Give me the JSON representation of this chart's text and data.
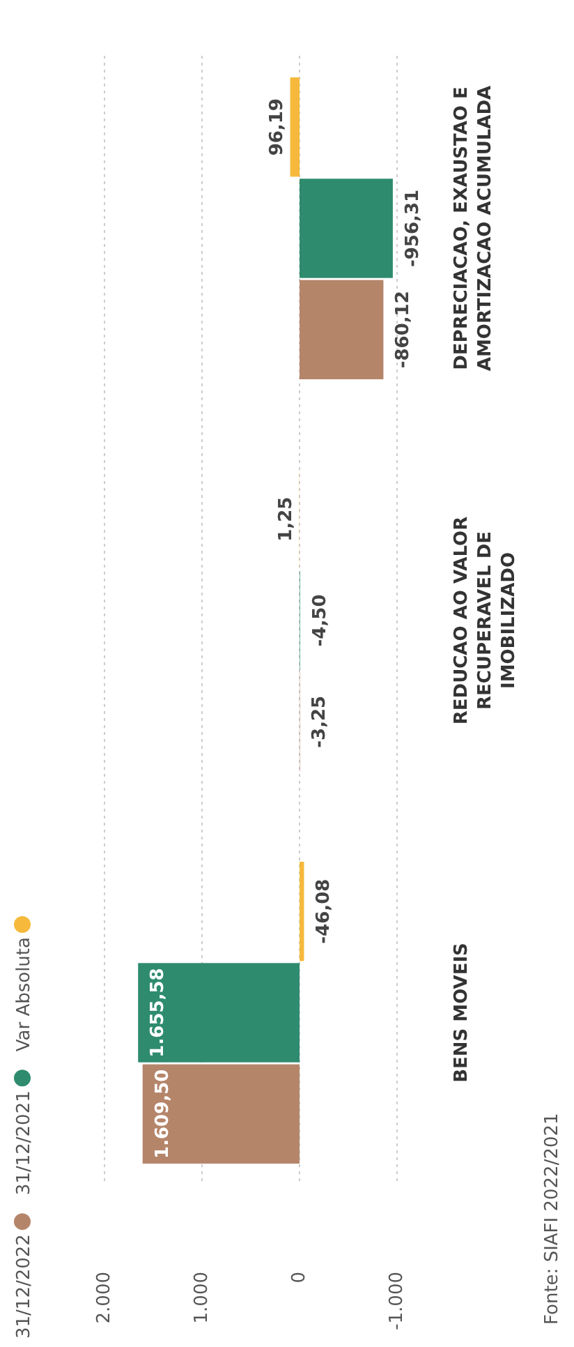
{
  "chart_data": {
    "type": "bar",
    "orientation": "horizontal",
    "categories": [
      "DEPRECIACAO, EXAUSTAO E AMORTIZACAO ACUMULADA",
      "REDUCAO AO VALOR RECUPERAVEL DE IMOBILIZADO",
      "BENS MOVEIS"
    ],
    "series": [
      {
        "name": "31/12/2022",
        "color": "#b5856a",
        "values": [
          -860.12,
          -3.25,
          1609.5
        ],
        "value_labels": [
          "-860,12",
          "-3,25",
          "1.609,50"
        ]
      },
      {
        "name": "31/12/2021",
        "color": "#2e8b6e",
        "values": [
          -956.31,
          -4.5,
          1655.58
        ],
        "value_labels": [
          "-956,31",
          "-4,50",
          "1.655,58"
        ]
      },
      {
        "name": "Var Absoluta",
        "color": "#f6b93b",
        "values": [
          96.19,
          1.25,
          -46.08
        ],
        "value_labels": [
          "96,19",
          "1,25",
          "-46,08"
        ]
      }
    ],
    "xlim": [
      2000,
      -1000
    ],
    "xticks": [
      {
        "value": 2000,
        "label": "2.000"
      },
      {
        "value": 1000,
        "label": "1.000"
      },
      {
        "value": 0,
        "label": "0"
      },
      {
        "value": -1000,
        "label": "-1.000"
      }
    ],
    "grid": "x",
    "legend": "bottom left",
    "annotations": [
      "Fonte: SIAFI 2022/2021"
    ]
  }
}
